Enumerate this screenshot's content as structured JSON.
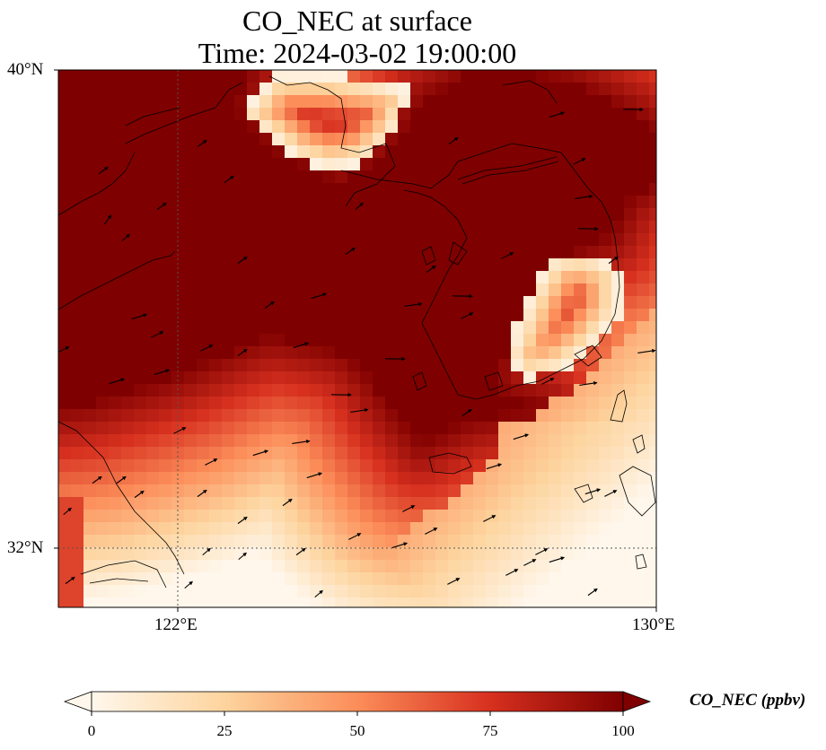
{
  "figure": {
    "title_line1": "CO_NEC at surface",
    "title_line2": "Time: 2024-03-02 19:00:00",
    "lat_labels": [
      "40°N",
      "32°N"
    ],
    "lon_labels": [
      "122°E",
      "130°E"
    ],
    "colorbar_title": "CO_NEC (ppbv)",
    "colorbar_ticks": [
      "0",
      "25",
      "50",
      "75",
      "100"
    ],
    "colormap": [
      "#fff7ec",
      "#fdd49e",
      "#fc8d59",
      "#d7301f",
      "#7f0000"
    ],
    "extent": {
      "lon": [
        120,
        130
      ],
      "lat": [
        31,
        40
      ]
    }
  }
}
